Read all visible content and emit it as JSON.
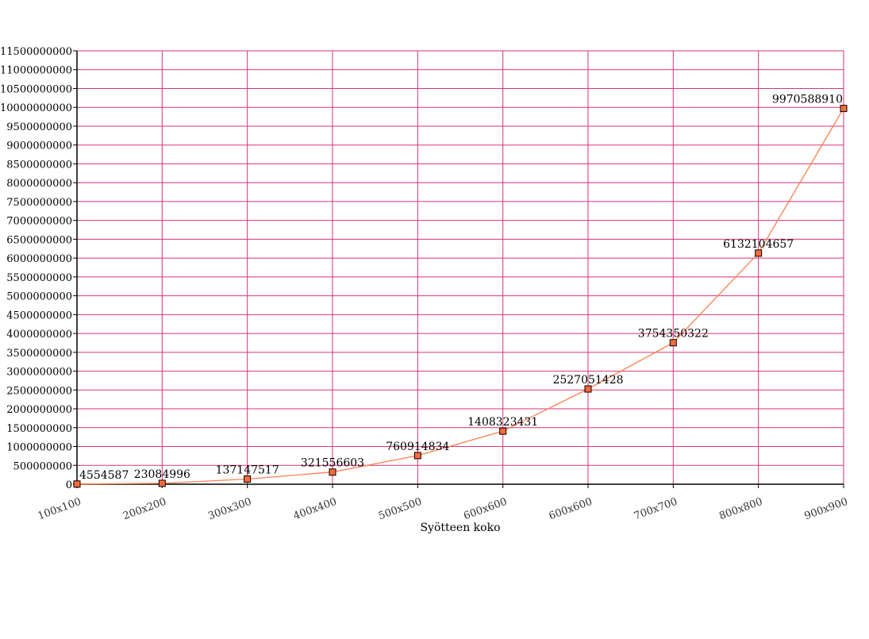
{
  "chart_data": {
    "type": "line",
    "title": "",
    "xlabel": "Syötteen koko",
    "ylabel": "",
    "categories": [
      "100x100",
      "200x200",
      "300x300",
      "400x400",
      "500x500",
      "600x600",
      "600x600",
      "700x700",
      "800x800",
      "900x900"
    ],
    "series": [
      {
        "values": [
          4554587,
          23084996,
          137147517,
          321556603,
          760914834,
          1408323431,
          2527051428,
          3754350322,
          6132104657,
          9970588910
        ]
      }
    ],
    "data_labels": [
      "4554587",
      "23084996",
      "137147517",
      "321556603",
      "760914834",
      "1408323431",
      "2527051428",
      "3754350322",
      "6132104657",
      "9970588910"
    ],
    "ylim": [
      0,
      11500000000
    ],
    "ytick_step": 500000000,
    "grid": true,
    "colors": {
      "line": "#ff7f50",
      "marker_fill": "#ff6a3d",
      "marker_stroke": "#000000",
      "grid": "#d8337a",
      "axis": "#000000"
    }
  }
}
